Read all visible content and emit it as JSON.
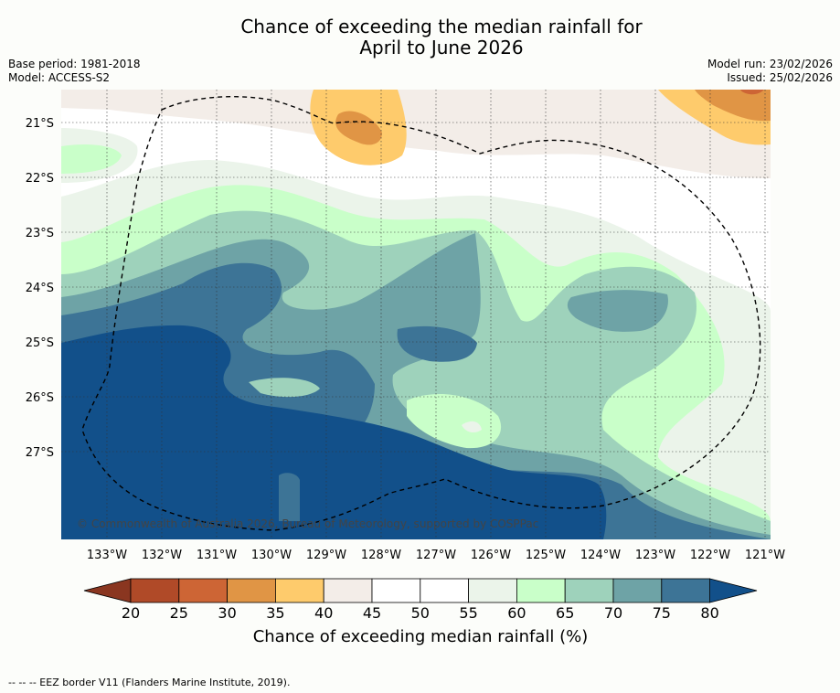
{
  "title": {
    "line1": "Chance of exceeding the median rainfall for",
    "line2": "April to June 2026"
  },
  "meta": {
    "base_period": "Base period: 1981-2018",
    "model": "Model: ACCESS-S2",
    "model_run": "Model run: 23/02/2026",
    "issued": "Issued: 25/02/2026"
  },
  "map": {
    "lat_labels": [
      "21°S",
      "22°S",
      "23°S",
      "24°S",
      "25°S",
      "26°S",
      "27°S"
    ],
    "lon_labels": [
      "133°W",
      "132°W",
      "131°W",
      "130°W",
      "129°W",
      "128°W",
      "127°W",
      "126°W",
      "125°W",
      "124°W",
      "123°W",
      "122°W",
      "121°W"
    ],
    "copyright": "© Commonwealth of Australia 2026, Bureau of Meteorology, supported by COSPPac"
  },
  "colorbar": {
    "ticks": [
      "20",
      "25",
      "30",
      "35",
      "40",
      "45",
      "50",
      "55",
      "60",
      "65",
      "70",
      "75",
      "80"
    ],
    "colors": [
      "#b04a28",
      "#cd6535",
      "#e09545",
      "#fecb6c",
      "#f3ede8",
      "#ffffff",
      "#ffffff",
      "#ebf4ea",
      "#c9ffc9",
      "#9ed2bb",
      "#6ea3a6",
      "#3d7496"
    ],
    "under_color": "#8a3620",
    "over_color": "#12508a",
    "label": "Chance of exceeding median rainfall (%)"
  },
  "footer": {
    "legend_text": "--  --  -- EEZ border V11 (Flanders Marine Institute, 2019)."
  }
}
